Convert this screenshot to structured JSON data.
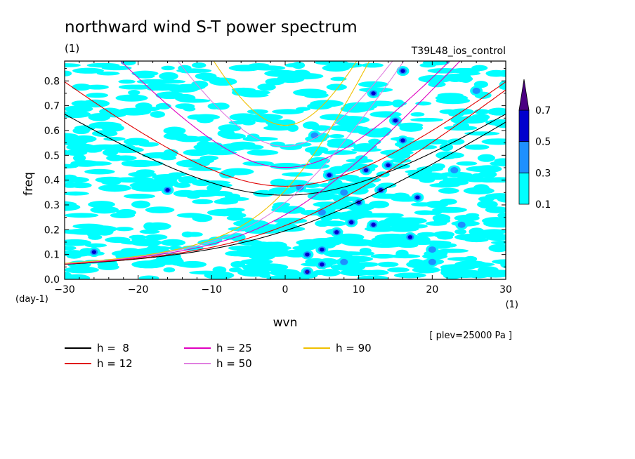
{
  "chart_data": {
    "type": "heatmap",
    "title": "northward wind S-T power spectrum",
    "subtitle": "(1)",
    "run_label": "T39L48_ios_control",
    "xlabel": "wvn",
    "x_unit": "(1)",
    "ylabel": "freq",
    "y_unit": "(day-1)",
    "xlim": [
      -30,
      30
    ],
    "ylim": [
      0,
      0.88
    ],
    "x_ticks": [
      -30,
      -20,
      -10,
      0,
      10,
      20,
      30
    ],
    "x_tick_labels": [
      "-30",
      "-20",
      "-10",
      "0",
      "10",
      "20",
      "30"
    ],
    "y_ticks": [
      0.0,
      0.1,
      0.2,
      0.3,
      0.4,
      0.5,
      0.6,
      0.7,
      0.8
    ],
    "y_tick_labels": [
      "0.0",
      "0.1",
      "0.2",
      "0.3",
      "0.4",
      "0.5",
      "0.6",
      "0.7",
      "0.8"
    ],
    "level_note": "[ plev=25000 Pa ]",
    "colorbar": {
      "levels": [
        0.1,
        0.3,
        0.5,
        0.7
      ],
      "level_labels": [
        "0.1",
        "0.3",
        "0.5",
        "0.7"
      ],
      "colors": [
        "#00ffff",
        "#1e90ff",
        "#0000cd",
        "#4b0082"
      ]
    },
    "dispersion_curves": [
      {
        "name": "h =  8",
        "h": 8,
        "color": "#000000"
      },
      {
        "name": "h = 12",
        "h": 12,
        "color": "#e00000"
      },
      {
        "name": "h = 25",
        "h": 25,
        "color": "#e000c0"
      },
      {
        "name": "h = 50",
        "h": 50,
        "color": "#e080e0"
      },
      {
        "name": "h = 90",
        "h": 90,
        "color": "#f0c000"
      }
    ],
    "power_cells": [
      {
        "k": 3,
        "f": 0.03,
        "v": 0.75
      },
      {
        "k": 3,
        "f": 0.1,
        "v": 0.6
      },
      {
        "k": 5,
        "f": 0.12,
        "v": 0.6
      },
      {
        "k": 5,
        "f": 0.27,
        "v": 0.4
      },
      {
        "k": 6,
        "f": 0.42,
        "v": 0.6
      },
      {
        "k": 7,
        "f": 0.19,
        "v": 0.6
      },
      {
        "k": 9,
        "f": 0.23,
        "v": 0.6
      },
      {
        "k": 8,
        "f": 0.07,
        "v": 0.4
      },
      {
        "k": 10,
        "f": 0.31,
        "v": 0.5
      },
      {
        "k": 11,
        "f": 0.44,
        "v": 0.5
      },
      {
        "k": 12,
        "f": 0.22,
        "v": 0.5
      },
      {
        "k": 13,
        "f": 0.36,
        "v": 0.6
      },
      {
        "k": 15,
        "f": 0.64,
        "v": 0.6
      },
      {
        "k": 16,
        "f": 0.56,
        "v": 0.6
      },
      {
        "k": 18,
        "f": 0.33,
        "v": 0.5
      },
      {
        "k": 17,
        "f": 0.17,
        "v": 0.5
      },
      {
        "k": 20,
        "f": 0.12,
        "v": 0.4
      },
      {
        "k": 24,
        "f": 0.22,
        "v": 0.4
      },
      {
        "k": 12,
        "f": 0.75,
        "v": 0.6
      },
      {
        "k": 16,
        "f": 0.84,
        "v": 0.5
      },
      {
        "k": -26,
        "f": 0.11,
        "v": 0.5
      },
      {
        "k": -16,
        "f": 0.36,
        "v": 0.5
      },
      {
        "k": 14,
        "f": 0.46,
        "v": 0.5
      },
      {
        "k": 20,
        "f": 0.07,
        "v": 0.4
      },
      {
        "k": 23,
        "f": 0.44,
        "v": 0.4
      },
      {
        "k": 4,
        "f": 0.58,
        "v": 0.4
      },
      {
        "k": 26,
        "f": 0.76,
        "v": 0.4
      },
      {
        "k": 8,
        "f": 0.35,
        "v": 0.4
      },
      {
        "k": 5,
        "f": 0.06,
        "v": 0.5
      },
      {
        "k": 2,
        "f": 0.37,
        "v": 0.4
      }
    ]
  }
}
